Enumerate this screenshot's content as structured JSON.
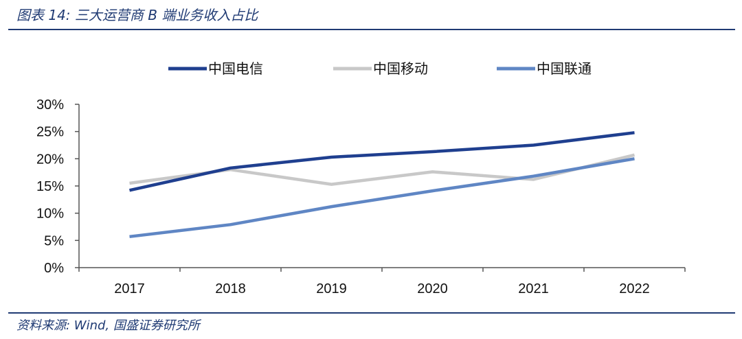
{
  "header": {
    "title": "图表 14:  三大运营商 B 端业务收入占比"
  },
  "footer": {
    "source": "资料来源:  Wind,  国盛证券研究所"
  },
  "colors": {
    "frame": "#1f3a73",
    "axis": "#555555"
  },
  "chart_data": {
    "type": "line",
    "categories": [
      "2017",
      "2018",
      "2019",
      "2020",
      "2021",
      "2022"
    ],
    "series": [
      {
        "name": "中国电信",
        "color": "#1f3f8f",
        "values": [
          14.2,
          18.3,
          20.3,
          21.3,
          22.5,
          24.8
        ]
      },
      {
        "name": "中国移动",
        "color": "#c8c8c8",
        "values": [
          15.5,
          18.0,
          15.3,
          17.6,
          16.2,
          20.7
        ]
      },
      {
        "name": "中国联通",
        "color": "#5f86c4",
        "values": [
          5.7,
          7.9,
          11.2,
          14.1,
          16.8,
          20.0
        ]
      }
    ],
    "yticks": [
      "0%",
      "5%",
      "10%",
      "15%",
      "20%",
      "25%",
      "30%"
    ],
    "ylim": [
      0,
      30
    ],
    "legend_position": "top",
    "grid": false
  }
}
